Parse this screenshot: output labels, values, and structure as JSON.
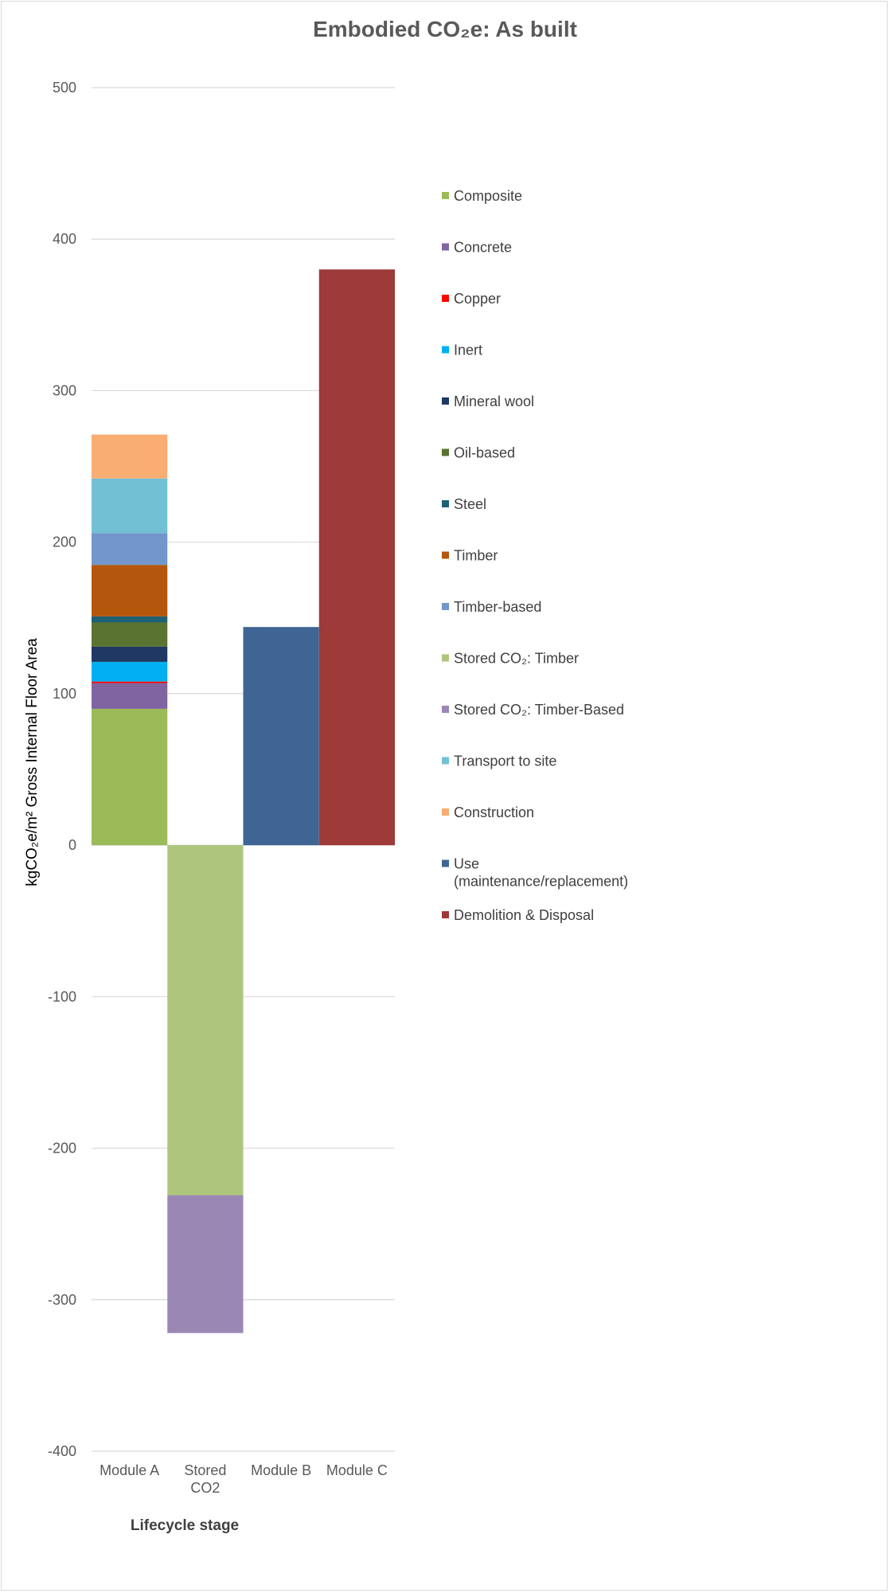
{
  "chart_data": {
    "type": "bar",
    "stacked": true,
    "title": "Embodied CO₂e: As built",
    "xlabel": "Lifecycle stage",
    "ylabel": "kgCO₂e/m² Gross Internal Floor Area",
    "ylim": [
      -400,
      500
    ],
    "yticks": [
      500,
      400,
      300,
      200,
      100,
      0,
      -100,
      -200,
      -300,
      -400
    ],
    "grid": true,
    "legend_position": "right",
    "categories": [
      "Module A",
      "Stored CO2",
      "Module B",
      "Module C"
    ],
    "series": [
      {
        "name": "Composite",
        "color": "#9bbb59",
        "values": [
          90,
          0,
          0,
          0
        ]
      },
      {
        "name": "Concrete",
        "color": "#8064a2",
        "values": [
          17,
          0,
          0,
          0
        ]
      },
      {
        "name": "Copper",
        "color": "#ff0000",
        "values": [
          1,
          0,
          0,
          0
        ]
      },
      {
        "name": "Inert",
        "color": "#00b0f0",
        "values": [
          13,
          0,
          0,
          0
        ]
      },
      {
        "name": "Mineral wool",
        "color": "#1f3864",
        "values": [
          10,
          0,
          0,
          0
        ]
      },
      {
        "name": "Oil-based",
        "color": "#5a7331",
        "values": [
          16,
          0,
          0,
          0
        ]
      },
      {
        "name": "Steel",
        "color": "#1e6074",
        "values": [
          4,
          0,
          0,
          0
        ]
      },
      {
        "name": "Timber",
        "color": "#b5560d",
        "values": [
          34,
          0,
          0,
          0
        ]
      },
      {
        "name": "Timber-based",
        "color": "#7197cd",
        "values": [
          21,
          0,
          0,
          0
        ]
      },
      {
        "name": "Stored CO₂: Timber",
        "color": "#adc67c",
        "values": [
          0,
          -231,
          0,
          0
        ]
      },
      {
        "name": "Stored CO₂: Timber-Based",
        "color": "#9b87b4",
        "values": [
          0,
          -91,
          0,
          0
        ]
      },
      {
        "name": "Transport to site",
        "color": "#71c0d4",
        "values": [
          36,
          0,
          0,
          0
        ]
      },
      {
        "name": "Construction",
        "color": "#f9ad72",
        "values": [
          29,
          0,
          0,
          0
        ]
      },
      {
        "name": "Use (maintenance/replacement)",
        "color": "#3f6594",
        "values": [
          0,
          0,
          144,
          0
        ]
      },
      {
        "name": "Demolition & Disposal",
        "color": "#9e3a38",
        "values": [
          0,
          0,
          0,
          380
        ]
      }
    ]
  }
}
